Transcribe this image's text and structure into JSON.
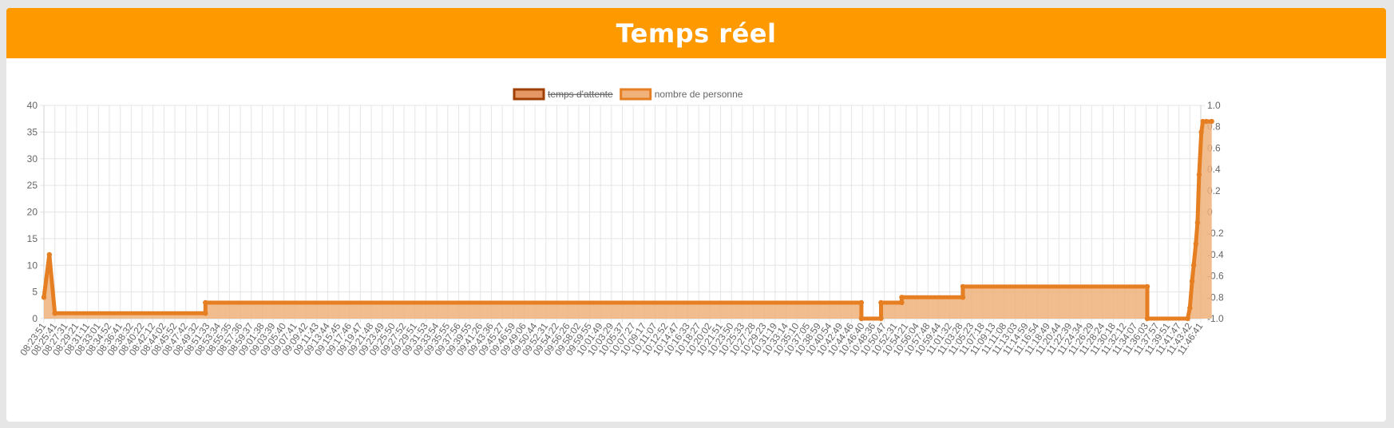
{
  "header": {
    "title": "Temps réel"
  },
  "colors": {
    "header_bg": "#ff9900",
    "line": "#e67e22",
    "fill": "#f0b27a",
    "hidden_series": "#e59866",
    "hidden_border": "#a04000",
    "grid": "#e5e5e5"
  },
  "chart_data": {
    "type": "line",
    "title": "",
    "legend_position": "top",
    "legend": [
      {
        "label": "temps d'attente",
        "hidden": true
      },
      {
        "label": "nombre de personne",
        "hidden": false
      }
    ],
    "y_left": {
      "min": 0,
      "max": 40,
      "ticks": [
        0,
        5,
        10,
        15,
        20,
        25,
        30,
        35,
        40
      ]
    },
    "y_right": {
      "min": -1.0,
      "max": 1.0,
      "ticks": [
        "-1.0",
        "-0.8",
        "-0.6",
        "-0.4",
        "-0.2",
        "0",
        "0.2",
        "0.4",
        "0.6",
        "0.8",
        "1.0"
      ]
    },
    "x_labels": [
      "08:23:51",
      "08:25:41",
      "08:27:31",
      "08:29:21",
      "08:31:11",
      "08:33:01",
      "08:34:52",
      "08:36:41",
      "08:38:32",
      "08:40:22",
      "08:42:12",
      "08:44:02",
      "08:45:52",
      "08:47:42",
      "08:49:32",
      "08:51:33",
      "08:53:34",
      "08:55:35",
      "08:57:36",
      "08:59:37",
      "09:01:38",
      "09:03:39",
      "09:05:40",
      "09:07:41",
      "09:09:42",
      "09:11:43",
      "09:13:44",
      "09:15:45",
      "09:17:46",
      "09:19:47",
      "09:21:48",
      "09:23:49",
      "09:25:50",
      "09:27:52",
      "09:29:51",
      "09:31:53",
      "09:33:54",
      "09:35:55",
      "09:37:56",
      "09:39:55",
      "09:41:26",
      "09:43:36",
      "09:45:27",
      "09:46:59",
      "09:49:06",
      "09:50:44",
      "09:52:31",
      "09:54:22",
      "09:56:26",
      "09:58:02",
      "09:59:55",
      "10:01:49",
      "10:03:29",
      "10:05:37",
      "10:07:27",
      "10:09:17",
      "10:11:07",
      "10:12:52",
      "10:14:47",
      "10:16:33",
      "10:18:27",
      "10:20:02",
      "10:21:51",
      "10:23:50",
      "10:25:33",
      "10:27:28",
      "10:29:23",
      "10:31:19",
      "10:33:14",
      "10:35:10",
      "10:37:05",
      "10:38:59",
      "10:40:54",
      "10:42:49",
      "10:44:46",
      "10:46:40",
      "10:48:36",
      "10:50:47",
      "10:52:31",
      "10:54:21",
      "10:56:04",
      "10:57:48",
      "10:59:44",
      "11:01:32",
      "11:03:28",
      "11:05:23",
      "11:07:18",
      "11:09:13",
      "11:11:08",
      "11:13:03",
      "11:14:59",
      "11:16:54",
      "11:18:49",
      "11:20:44",
      "11:22:39",
      "11:24:34",
      "11:26:29",
      "11:28:24",
      "11:30:18",
      "11:32:12",
      "11:34:07",
      "11:36:03",
      "11:37:57",
      "11:39:51",
      "11:41:47",
      "11:43:42",
      "11:46:41"
    ],
    "series": [
      {
        "name": "nombre de personne",
        "points": [
          [
            0,
            4
          ],
          [
            0.5,
            12
          ],
          [
            1,
            1
          ],
          [
            14.8,
            1
          ],
          [
            14.8,
            3
          ],
          [
            74.9,
            3
          ],
          [
            74.9,
            0
          ],
          [
            76.7,
            0
          ],
          [
            76.7,
            3
          ],
          [
            78.6,
            3
          ],
          [
            78.6,
            4
          ],
          [
            84.2,
            4
          ],
          [
            84.2,
            6
          ],
          [
            101.1,
            6
          ],
          [
            101.1,
            0
          ],
          [
            104.8,
            0
          ],
          [
            105,
            2
          ],
          [
            105.2,
            7
          ],
          [
            105.35,
            10
          ],
          [
            105.55,
            14
          ],
          [
            105.7,
            18
          ],
          [
            105.85,
            27
          ],
          [
            106.05,
            35
          ],
          [
            106.2,
            37
          ],
          [
            107,
            37
          ]
        ],
        "markers": [
          [
            0,
            4
          ],
          [
            0.5,
            12
          ],
          [
            1,
            1
          ],
          [
            14.8,
            1
          ],
          [
            14.8,
            3
          ],
          [
            74.9,
            3
          ],
          [
            74.9,
            0
          ],
          [
            76.7,
            0
          ],
          [
            76.7,
            3
          ],
          [
            78.6,
            3
          ],
          [
            78.6,
            4
          ],
          [
            84.2,
            4
          ],
          [
            84.2,
            6
          ],
          [
            101.1,
            6
          ],
          [
            101.1,
            0
          ],
          [
            104.8,
            0
          ],
          [
            105,
            2
          ],
          [
            105.2,
            7
          ],
          [
            105.35,
            10
          ],
          [
            105.55,
            14
          ],
          [
            105.7,
            18
          ],
          [
            105.85,
            27
          ],
          [
            106.05,
            35
          ],
          [
            106.2,
            37
          ],
          [
            106.5,
            37
          ],
          [
            107,
            37
          ]
        ]
      }
    ]
  }
}
